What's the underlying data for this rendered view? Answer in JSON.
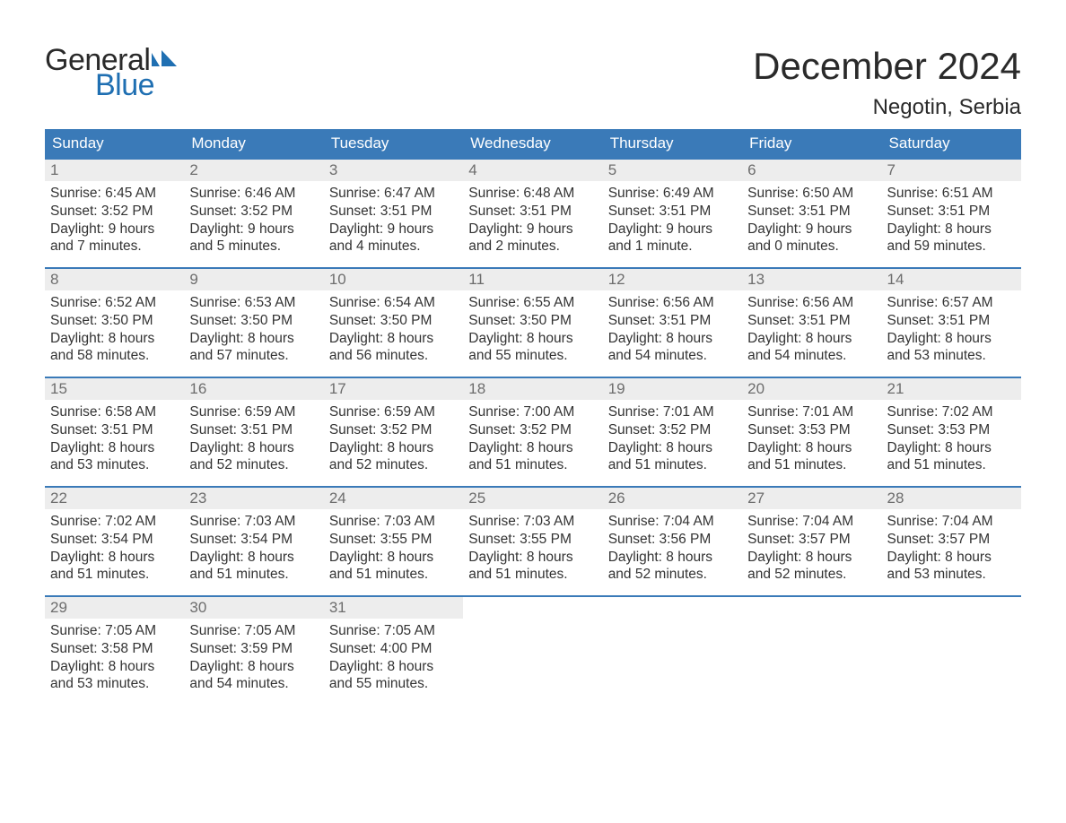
{
  "logo": {
    "top": "General",
    "bottom": "Blue",
    "text_color": "#2a2a2a",
    "accent_color": "#1f6fb2"
  },
  "title": "December 2024",
  "location": "Negotin, Serbia",
  "colors": {
    "header_bg": "#3a7ab8",
    "header_text": "#ffffff",
    "daynum_bg": "#ededed",
    "daynum_text": "#6d6d6d",
    "body_text": "#333333",
    "week_border": "#3a7ab8",
    "page_bg": "#ffffff"
  },
  "days_of_week": [
    "Sunday",
    "Monday",
    "Tuesday",
    "Wednesday",
    "Thursday",
    "Friday",
    "Saturday"
  ],
  "weeks": [
    [
      {
        "n": "1",
        "sr": "Sunrise: 6:45 AM",
        "ss": "Sunset: 3:52 PM",
        "d1": "Daylight: 9 hours",
        "d2": "and 7 minutes."
      },
      {
        "n": "2",
        "sr": "Sunrise: 6:46 AM",
        "ss": "Sunset: 3:52 PM",
        "d1": "Daylight: 9 hours",
        "d2": "and 5 minutes."
      },
      {
        "n": "3",
        "sr": "Sunrise: 6:47 AM",
        "ss": "Sunset: 3:51 PM",
        "d1": "Daylight: 9 hours",
        "d2": "and 4 minutes."
      },
      {
        "n": "4",
        "sr": "Sunrise: 6:48 AM",
        "ss": "Sunset: 3:51 PM",
        "d1": "Daylight: 9 hours",
        "d2": "and 2 minutes."
      },
      {
        "n": "5",
        "sr": "Sunrise: 6:49 AM",
        "ss": "Sunset: 3:51 PM",
        "d1": "Daylight: 9 hours",
        "d2": "and 1 minute."
      },
      {
        "n": "6",
        "sr": "Sunrise: 6:50 AM",
        "ss": "Sunset: 3:51 PM",
        "d1": "Daylight: 9 hours",
        "d2": "and 0 minutes."
      },
      {
        "n": "7",
        "sr": "Sunrise: 6:51 AM",
        "ss": "Sunset: 3:51 PM",
        "d1": "Daylight: 8 hours",
        "d2": "and 59 minutes."
      }
    ],
    [
      {
        "n": "8",
        "sr": "Sunrise: 6:52 AM",
        "ss": "Sunset: 3:50 PM",
        "d1": "Daylight: 8 hours",
        "d2": "and 58 minutes."
      },
      {
        "n": "9",
        "sr": "Sunrise: 6:53 AM",
        "ss": "Sunset: 3:50 PM",
        "d1": "Daylight: 8 hours",
        "d2": "and 57 minutes."
      },
      {
        "n": "10",
        "sr": "Sunrise: 6:54 AM",
        "ss": "Sunset: 3:50 PM",
        "d1": "Daylight: 8 hours",
        "d2": "and 56 minutes."
      },
      {
        "n": "11",
        "sr": "Sunrise: 6:55 AM",
        "ss": "Sunset: 3:50 PM",
        "d1": "Daylight: 8 hours",
        "d2": "and 55 minutes."
      },
      {
        "n": "12",
        "sr": "Sunrise: 6:56 AM",
        "ss": "Sunset: 3:51 PM",
        "d1": "Daylight: 8 hours",
        "d2": "and 54 minutes."
      },
      {
        "n": "13",
        "sr": "Sunrise: 6:56 AM",
        "ss": "Sunset: 3:51 PM",
        "d1": "Daylight: 8 hours",
        "d2": "and 54 minutes."
      },
      {
        "n": "14",
        "sr": "Sunrise: 6:57 AM",
        "ss": "Sunset: 3:51 PM",
        "d1": "Daylight: 8 hours",
        "d2": "and 53 minutes."
      }
    ],
    [
      {
        "n": "15",
        "sr": "Sunrise: 6:58 AM",
        "ss": "Sunset: 3:51 PM",
        "d1": "Daylight: 8 hours",
        "d2": "and 53 minutes."
      },
      {
        "n": "16",
        "sr": "Sunrise: 6:59 AM",
        "ss": "Sunset: 3:51 PM",
        "d1": "Daylight: 8 hours",
        "d2": "and 52 minutes."
      },
      {
        "n": "17",
        "sr": "Sunrise: 6:59 AM",
        "ss": "Sunset: 3:52 PM",
        "d1": "Daylight: 8 hours",
        "d2": "and 52 minutes."
      },
      {
        "n": "18",
        "sr": "Sunrise: 7:00 AM",
        "ss": "Sunset: 3:52 PM",
        "d1": "Daylight: 8 hours",
        "d2": "and 51 minutes."
      },
      {
        "n": "19",
        "sr": "Sunrise: 7:01 AM",
        "ss": "Sunset: 3:52 PM",
        "d1": "Daylight: 8 hours",
        "d2": "and 51 minutes."
      },
      {
        "n": "20",
        "sr": "Sunrise: 7:01 AM",
        "ss": "Sunset: 3:53 PM",
        "d1": "Daylight: 8 hours",
        "d2": "and 51 minutes."
      },
      {
        "n": "21",
        "sr": "Sunrise: 7:02 AM",
        "ss": "Sunset: 3:53 PM",
        "d1": "Daylight: 8 hours",
        "d2": "and 51 minutes."
      }
    ],
    [
      {
        "n": "22",
        "sr": "Sunrise: 7:02 AM",
        "ss": "Sunset: 3:54 PM",
        "d1": "Daylight: 8 hours",
        "d2": "and 51 minutes."
      },
      {
        "n": "23",
        "sr": "Sunrise: 7:03 AM",
        "ss": "Sunset: 3:54 PM",
        "d1": "Daylight: 8 hours",
        "d2": "and 51 minutes."
      },
      {
        "n": "24",
        "sr": "Sunrise: 7:03 AM",
        "ss": "Sunset: 3:55 PM",
        "d1": "Daylight: 8 hours",
        "d2": "and 51 minutes."
      },
      {
        "n": "25",
        "sr": "Sunrise: 7:03 AM",
        "ss": "Sunset: 3:55 PM",
        "d1": "Daylight: 8 hours",
        "d2": "and 51 minutes."
      },
      {
        "n": "26",
        "sr": "Sunrise: 7:04 AM",
        "ss": "Sunset: 3:56 PM",
        "d1": "Daylight: 8 hours",
        "d2": "and 52 minutes."
      },
      {
        "n": "27",
        "sr": "Sunrise: 7:04 AM",
        "ss": "Sunset: 3:57 PM",
        "d1": "Daylight: 8 hours",
        "d2": "and 52 minutes."
      },
      {
        "n": "28",
        "sr": "Sunrise: 7:04 AM",
        "ss": "Sunset: 3:57 PM",
        "d1": "Daylight: 8 hours",
        "d2": "and 53 minutes."
      }
    ],
    [
      {
        "n": "29",
        "sr": "Sunrise: 7:05 AM",
        "ss": "Sunset: 3:58 PM",
        "d1": "Daylight: 8 hours",
        "d2": "and 53 minutes."
      },
      {
        "n": "30",
        "sr": "Sunrise: 7:05 AM",
        "ss": "Sunset: 3:59 PM",
        "d1": "Daylight: 8 hours",
        "d2": "and 54 minutes."
      },
      {
        "n": "31",
        "sr": "Sunrise: 7:05 AM",
        "ss": "Sunset: 4:00 PM",
        "d1": "Daylight: 8 hours",
        "d2": "and 55 minutes."
      },
      {
        "empty": true
      },
      {
        "empty": true
      },
      {
        "empty": true
      },
      {
        "empty": true
      }
    ]
  ]
}
